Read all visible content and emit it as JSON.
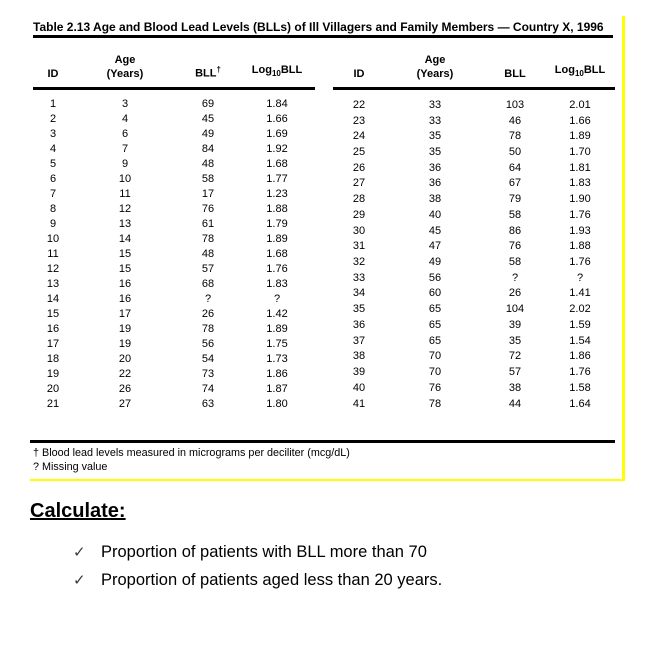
{
  "figure": {
    "title": "Table 2.13 Age and Blood Lead Levels (BLLs) of Ill Villagers and Family Members — Country X, 1996",
    "border_color": "#ffff00",
    "columns": {
      "id": "ID",
      "age_top": "Age",
      "age_bottom": "(Years)",
      "bll": "BLL",
      "bll_dagger": "†",
      "log_prefix": "Log",
      "log_sub": "10",
      "log_suffix": "BLL"
    },
    "left_rows": [
      [
        "1",
        "3",
        "69",
        "1.84"
      ],
      [
        "2",
        "4",
        "45",
        "1.66"
      ],
      [
        "3",
        "6",
        "49",
        "1.69"
      ],
      [
        "4",
        "7",
        "84",
        "1.92"
      ],
      [
        "5",
        "9",
        "48",
        "1.68"
      ],
      [
        "6",
        "10",
        "58",
        "1.77"
      ],
      [
        "7",
        "11",
        "17",
        "1.23"
      ],
      [
        "8",
        "12",
        "76",
        "1.88"
      ],
      [
        "9",
        "13",
        "61",
        "1.79"
      ],
      [
        "10",
        "14",
        "78",
        "1.89"
      ],
      [
        "11",
        "15",
        "48",
        "1.68"
      ],
      [
        "12",
        "15",
        "57",
        "1.76"
      ],
      [
        "13",
        "16",
        "68",
        "1.83"
      ],
      [
        "14",
        "16",
        "?",
        "?"
      ],
      [
        "15",
        "17",
        "26",
        "1.42"
      ],
      [
        "16",
        "19",
        "78",
        "1.89"
      ],
      [
        "17",
        "19",
        "56",
        "1.75"
      ],
      [
        "18",
        "20",
        "54",
        "1.73"
      ],
      [
        "19",
        "22",
        "73",
        "1.86"
      ],
      [
        "20",
        "26",
        "74",
        "1.87"
      ],
      [
        "21",
        "27",
        "63",
        "1.80"
      ]
    ],
    "right_rows": [
      [
        "22",
        "33",
        "103",
        "2.01"
      ],
      [
        "23",
        "33",
        "46",
        "1.66"
      ],
      [
        "24",
        "35",
        "78",
        "1.89"
      ],
      [
        "25",
        "35",
        "50",
        "1.70"
      ],
      [
        "26",
        "36",
        "64",
        "1.81"
      ],
      [
        "27",
        "36",
        "67",
        "1.83"
      ],
      [
        "28",
        "38",
        "79",
        "1.90"
      ],
      [
        "29",
        "40",
        "58",
        "1.76"
      ],
      [
        "30",
        "45",
        "86",
        "1.93"
      ],
      [
        "31",
        "47",
        "76",
        "1.88"
      ],
      [
        "32",
        "49",
        "58",
        "1.76"
      ],
      [
        "33",
        "56",
        "?",
        "?"
      ],
      [
        "34",
        "60",
        "26",
        "1.41"
      ],
      [
        "35",
        "65",
        "104",
        "2.02"
      ],
      [
        "36",
        "65",
        "39",
        "1.59"
      ],
      [
        "37",
        "65",
        "35",
        "1.54"
      ],
      [
        "38",
        "70",
        "72",
        "1.86"
      ],
      [
        "39",
        "70",
        "57",
        "1.76"
      ],
      [
        "40",
        "76",
        "38",
        "1.58"
      ],
      [
        "41",
        "78",
        "44",
        "1.64"
      ]
    ],
    "footnotes": [
      "† Blood lead levels measured in micrograms per deciliter (mcg/dL)",
      "? Missing value"
    ]
  },
  "calculate": {
    "heading": "Calculate:",
    "check_glyph": "✓",
    "items": [
      "Proportion of patients with BLL more than 70",
      "Proportion of patients aged less than 20 years."
    ]
  }
}
